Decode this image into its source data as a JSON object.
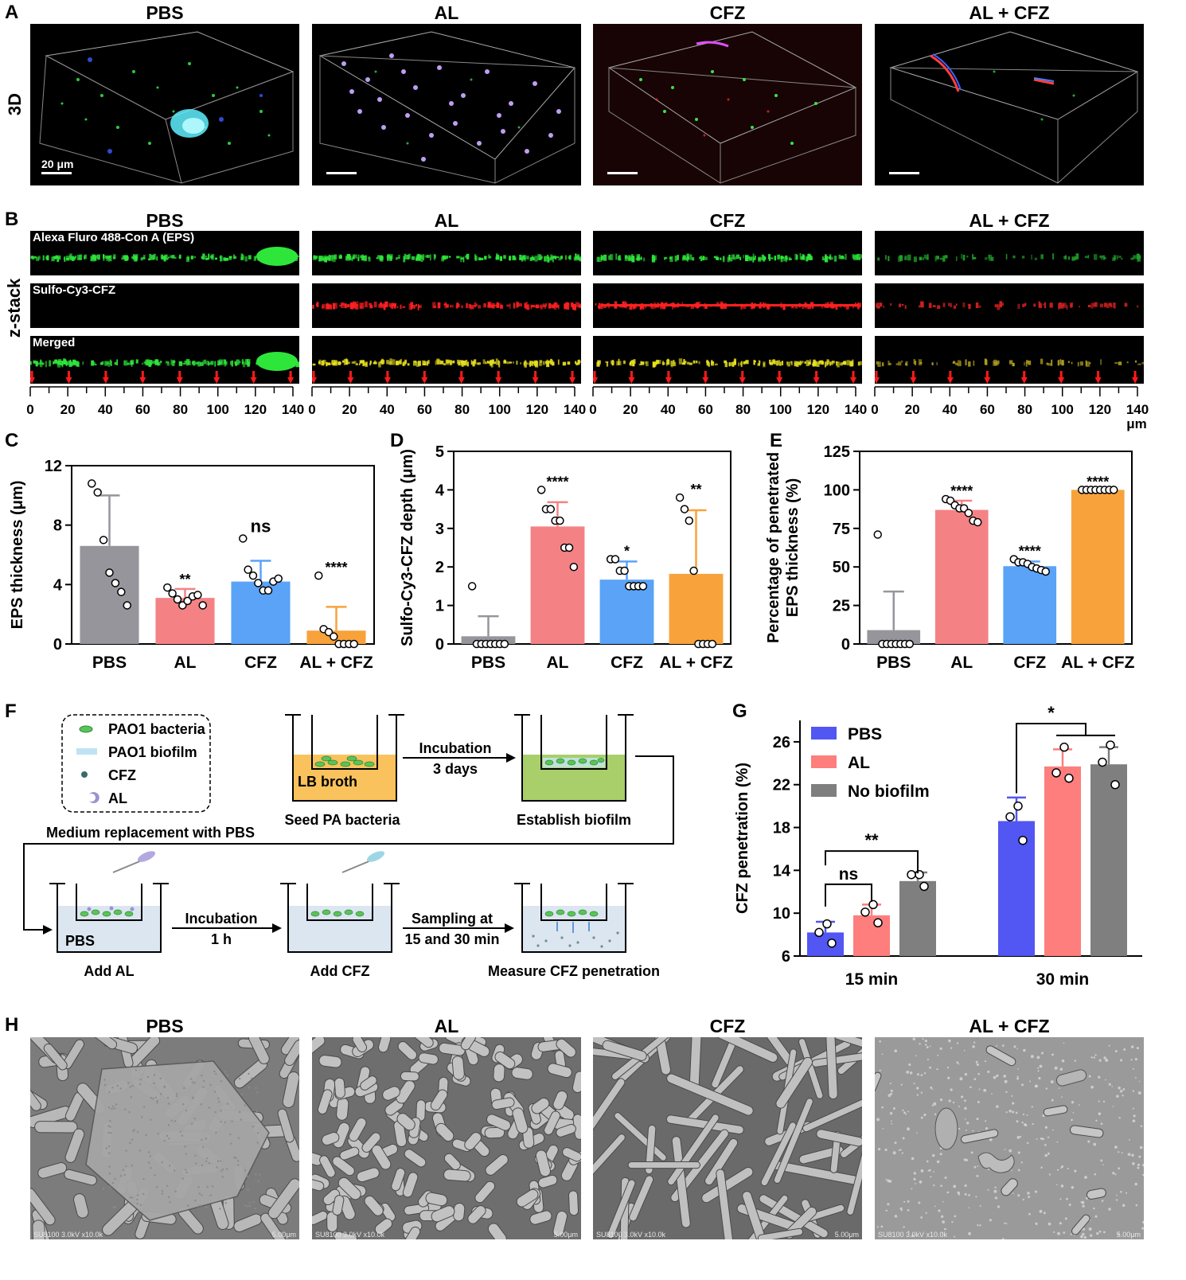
{
  "panel_letters": {
    "A": "A",
    "B": "B",
    "C": "C",
    "D": "D",
    "E": "E",
    "F": "F",
    "G": "G",
    "H": "H"
  },
  "groups": [
    "PBS",
    "AL",
    "CFZ",
    "AL + CFZ"
  ],
  "panel_a": {
    "row_label": "3D",
    "scale_bar_label": "20 μm"
  },
  "panel_b": {
    "row_label": "z-stack",
    "channels": [
      "Alexa Fluro 488-Con A (EPS)",
      "Sulfo-Cy3-CFZ",
      "Merged"
    ],
    "ruler_ticks": [
      "0",
      "20",
      "40",
      "60",
      "80",
      "100",
      "120",
      "140"
    ],
    "ruler_unit": "μm"
  },
  "chart_data": [
    {
      "panel": "C",
      "type": "bar",
      "categories": [
        "PBS",
        "AL",
        "CFZ",
        "AL + CFZ"
      ],
      "values": [
        6.6,
        3.1,
        4.2,
        0.9
      ],
      "errors": [
        3.4,
        0.6,
        1.4,
        1.6
      ],
      "points": [
        [
          10.8,
          10.2,
          7.0,
          4.8,
          4.1,
          3.5,
          2.6
        ],
        [
          3.8,
          3.4,
          3.0,
          2.6,
          2.9,
          3.2,
          3.3,
          2.6
        ],
        [
          7.1,
          5.0,
          4.6,
          4.1,
          3.6,
          3.6,
          4.2,
          4.4
        ],
        [
          4.6,
          1.0,
          0.8,
          0.5,
          0,
          0,
          0,
          0
        ]
      ],
      "significance": [
        "",
        "**",
        "ns",
        "****"
      ],
      "ylabel": "EPS thickness (μm)",
      "ylim": [
        0,
        12
      ],
      "yticks": [
        0,
        4,
        8,
        12
      ],
      "colors": [
        "#97959c",
        "#f48284",
        "#5aa3f7",
        "#f8a23c"
      ]
    },
    {
      "panel": "D",
      "type": "bar",
      "categories": [
        "PBS",
        "AL",
        "CFZ",
        "AL + CFZ"
      ],
      "values": [
        0.2,
        3.05,
        1.67,
        1.82
      ],
      "errors": [
        0.52,
        0.63,
        0.47,
        1.65
      ],
      "points": [
        [
          1.5,
          0,
          0,
          0,
          0,
          0,
          0,
          0
        ],
        [
          4.0,
          3.5,
          3.5,
          3.2,
          3.2,
          2.5,
          2.5,
          2.0
        ],
        [
          2.2,
          2.2,
          1.9,
          1.9,
          1.5,
          1.5,
          1.5,
          1.5
        ],
        [
          3.8,
          3.5,
          3.2,
          1.9,
          0,
          0,
          0,
          0
        ]
      ],
      "significance": [
        "",
        "****",
        "*",
        "**"
      ],
      "ylabel": "Sulfo-Cy3-CFZ depth (μm)",
      "ylim": [
        0,
        5
      ],
      "yticks": [
        0,
        1,
        2,
        3,
        4,
        5
      ],
      "colors": [
        "#97959c",
        "#f48284",
        "#5aa3f7",
        "#f8a23c"
      ]
    },
    {
      "panel": "E",
      "type": "bar",
      "categories": [
        "PBS",
        "AL",
        "CFZ",
        "AL + CFZ"
      ],
      "values": [
        9,
        87,
        50.5,
        100
      ],
      "errors": [
        25,
        6,
        3,
        0
      ],
      "points": [
        [
          71,
          0,
          0,
          0,
          0,
          0,
          0,
          0
        ],
        [
          94,
          93,
          90,
          88,
          88,
          85,
          80,
          79
        ],
        [
          55,
          53,
          53,
          52,
          50,
          49,
          48,
          47
        ],
        [
          100,
          100,
          100,
          100,
          100,
          100,
          100,
          100
        ]
      ],
      "significance": [
        "",
        "****",
        "****",
        "****"
      ],
      "ylabel": "Percentage of penetrated EPS thickness (%)",
      "ylabel_lines": [
        "Percentage of penetrated",
        "EPS thickness (%)"
      ],
      "ylim": [
        0,
        125
      ],
      "yticks": [
        0,
        25,
        50,
        75,
        100,
        125
      ],
      "colors": [
        "#97959c",
        "#f48284",
        "#5aa3f7",
        "#f8a23c"
      ]
    },
    {
      "panel": "G",
      "type": "bar",
      "categories": [
        "15 min",
        "30 min"
      ],
      "series": [
        {
          "name": "PBS",
          "values": [
            8.2,
            18.6
          ],
          "errors": [
            1.0,
            2.2
          ],
          "points": [
            [
              9.0,
              8.2,
              7.2
            ],
            [
              20.0,
              19.0,
              16.8
            ]
          ]
        },
        {
          "name": "AL",
          "values": [
            9.8,
            23.7
          ],
          "errors": [
            1.0,
            1.6
          ],
          "points": [
            [
              10.8,
              10.1,
              9.1
            ],
            [
              25.5,
              23.1,
              22.6
            ]
          ]
        },
        {
          "name": "No biofilm",
          "values": [
            13.0,
            23.9
          ],
          "errors": [
            0.8,
            1.6
          ],
          "points": [
            [
              13.6,
              13.6,
              12.5
            ],
            [
              25.7,
              24.1,
              22.0
            ]
          ]
        }
      ],
      "colors": [
        "#5256f2",
        "#fd7e7c",
        "#7f7f7f"
      ],
      "ylabel": "CFZ penetration (%)",
      "ylim": [
        6,
        28
      ],
      "yticks": [
        6,
        10,
        14,
        18,
        22,
        26
      ],
      "comparisons": [
        "**",
        "ns",
        "*"
      ],
      "legend_position": "top-left"
    }
  ],
  "panel_f": {
    "legend": [
      "PAO1 bacteria",
      "PAO1 biofilm",
      "CFZ",
      "AL"
    ],
    "steps": {
      "seed": "Seed PA bacteria",
      "lb": "LB broth",
      "incub3_top": "Incubation",
      "incub3_bot": "3 days",
      "establish": "Establish biofilm",
      "medium": "Medium replacement with PBS",
      "pbs": "PBS",
      "add_al": "Add AL",
      "incub1_top": "Incubation",
      "incub1_bot": "1 h",
      "add_cfz": "Add CFZ",
      "samp_top": "Sampling at",
      "samp_bot": "15 and 30 min",
      "measure": "Measure CFZ penetration"
    }
  },
  "panel_h": {
    "caption_left": "SU8100 3.0kV x10.0k",
    "caption_right": "5.00μm"
  }
}
